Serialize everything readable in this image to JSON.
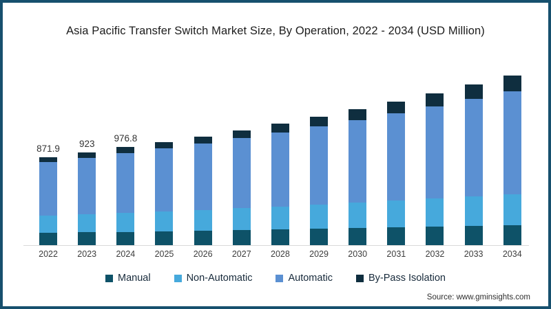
{
  "frame": {
    "border_color": "#17506e",
    "background_color": "#ffffff"
  },
  "title": "Asia Pacific Transfer Switch Market Size, By Operation, 2022 - 2034 (USD Million)",
  "source": "Source: www.gminsights.com",
  "legend": [
    {
      "label": "Manual",
      "color": "#0e5268"
    },
    {
      "label": "Non-Automatic",
      "color": "#46a9dc"
    },
    {
      "label": "Automatic",
      "color": "#5b90d2"
    },
    {
      "label": "By-Pass Isolation",
      "color": "#0f2e3f"
    }
  ],
  "chart_data": {
    "type": "bar",
    "stacked": true,
    "title": "Asia Pacific Transfer Switch Market Size, By Operation, 2022 - 2034 (USD Million)",
    "xlabel": "",
    "ylabel": "USD Million",
    "ylim": [
      0,
      1800
    ],
    "grid": false,
    "legend_position": "bottom",
    "categories": [
      "2022",
      "2023",
      "2024",
      "2025",
      "2026",
      "2027",
      "2028",
      "2029",
      "2030",
      "2031",
      "2032",
      "2033",
      "2034"
    ],
    "data_labels": [
      "871.9",
      "923",
      "976.8",
      "",
      "",
      "",
      "",
      "",
      "",
      "",
      "",
      "",
      ""
    ],
    "labeled_totals": {
      "2022": 871.9,
      "2023": 923,
      "2024": 976.8
    },
    "estimated_totals": [
      871.9,
      923,
      976.8,
      1026,
      1083,
      1144,
      1208,
      1278,
      1350,
      1427,
      1510,
      1596,
      1688
    ],
    "series": [
      {
        "name": "Manual",
        "color": "#0e5268",
        "values": [
          123,
          128,
          133,
          139,
          144,
          150,
          156,
          163,
          169,
          176,
          184,
          191,
          199
        ]
      },
      {
        "name": "Non-Automatic",
        "color": "#46a9dc",
        "values": [
          170,
          179,
          188,
          197,
          207,
          218,
          229,
          241,
          253,
          266,
          280,
          294,
          309
        ]
      },
      {
        "name": "Automatic",
        "color": "#5b90d2",
        "values": [
          531,
          562,
          593,
          625,
          660,
          697,
          736,
          778,
          821,
          867,
          916,
          967,
          1021
        ]
      },
      {
        "name": "By-Pass Isolation",
        "color": "#0f2e3f",
        "values": [
          47.9,
          54,
          62.8,
          65,
          72,
          79,
          87,
          96,
          107,
          118,
          130,
          144,
          159
        ]
      }
    ]
  }
}
